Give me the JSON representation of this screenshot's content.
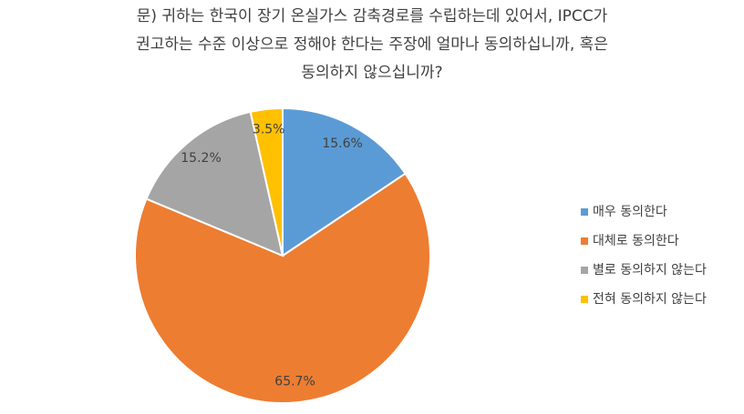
{
  "chart_data": {
    "type": "pie",
    "title": [
      "문) 귀하는 한국이 장기 온실가스 감축경로를 수립하는데 있어서, IPCC가",
      "권고하는 수준 이상으로 정해야 한다는 주장에 얼마나 동의하십니까, 혹은",
      "동의하지 않으십니까?"
    ],
    "categories": [
      "매우 동의한다",
      "대체로 동의한다",
      "별로 동의하지 않는다",
      "전혀 동의하지 않는다"
    ],
    "values": [
      15.6,
      65.7,
      15.2,
      3.5
    ],
    "value_labels": [
      "15.6%",
      "65.7%",
      "15.2%",
      "3.5%"
    ],
    "colors": [
      "#5b9bd5",
      "#ed7d31",
      "#a5a5a5",
      "#ffc000"
    ],
    "legend": "right"
  }
}
